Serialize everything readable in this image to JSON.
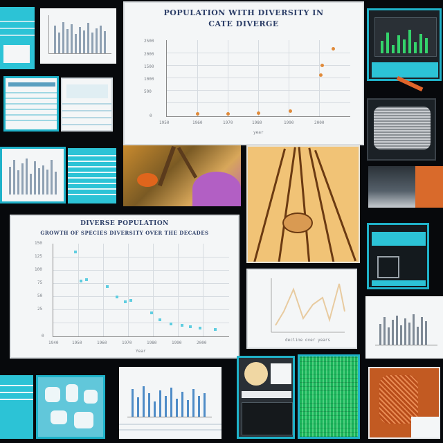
{
  "panels": {
    "top_chart": {
      "title_line1": "POPULATION WITH DIVERSITY IN",
      "title_line2": "CATE DIVERGE",
      "y_ticks": [
        "2500",
        "2000",
        "1500",
        "1000",
        "500",
        "0"
      ],
      "x_ticks": [
        "1950",
        "1960",
        "1970",
        "1980",
        "1990",
        "2000"
      ],
      "xlabel": "year"
    },
    "mid_chart": {
      "title_line1": "DIVERSE POPULATION",
      "title_line2": "GROWTH OF SPECIES DIVERSITY OVER THE DECADES",
      "y_ticks": [
        "150",
        "125",
        "100",
        "75",
        "50",
        "25",
        "0"
      ],
      "x_ticks": [
        "1940",
        "1950",
        "1960",
        "1970",
        "1980",
        "1990",
        "2000"
      ],
      "xlabel": "Year"
    },
    "line_chart": {
      "caption": "decline over years"
    }
  },
  "colors": {
    "accent_cyan": "#2cc3d6",
    "chart_title": "#2d3f68",
    "orange_point": "#e08a3a",
    "scatter_point": "#5fcde0",
    "fern_green": "#19b35a",
    "background": "#07090c"
  }
}
